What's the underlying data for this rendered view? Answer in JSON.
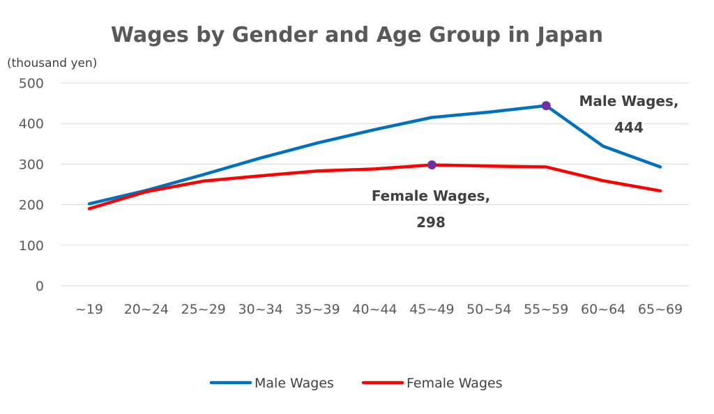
{
  "chart_data": {
    "type": "line",
    "title": "Wages by Gender and Age Group in Japan",
    "y_unit_label": "(thousand yen)",
    "xlabel": "",
    "ylabel": "",
    "categories": [
      "~19",
      "20~24",
      "25~29",
      "30~34",
      "35~39",
      "40~44",
      "45~49",
      "50~54",
      "55~59",
      "60~64",
      "65~69"
    ],
    "ylim": [
      0,
      500
    ],
    "yticks": [
      0,
      100,
      200,
      300,
      400,
      500
    ],
    "grid": true,
    "legend_position": "bottom",
    "series": [
      {
        "name": "Male Wages",
        "color": "#0070c0",
        "values": [
          202,
          235,
          274,
          315,
          352,
          385,
          415,
          428,
          444,
          344,
          293
        ]
      },
      {
        "name": "Female Wages",
        "color": "#ff0000",
        "values": [
          190,
          232,
          258,
          271,
          283,
          288,
          298,
          295,
          293,
          259,
          234
        ]
      }
    ],
    "annotations": [
      {
        "series": "Male Wages",
        "category": "55~59",
        "line1": "Male Wages,",
        "line2": "444",
        "marker_color": "#7030a0"
      },
      {
        "series": "Female Wages",
        "category": "45~49",
        "line1": "Female Wages,",
        "line2": "298",
        "marker_color": "#7030a0"
      }
    ]
  }
}
